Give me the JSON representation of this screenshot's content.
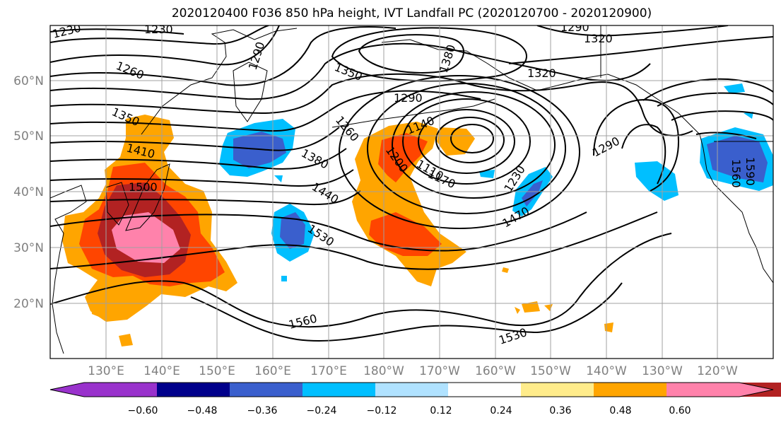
{
  "title": "2020120400 F036 850 hPa height, IVT Landfall PC (2020120700 - 2020120900)",
  "lat_labels": [
    "60°N",
    "50°N",
    "40°N",
    "30°N",
    "20°N"
  ],
  "lon_labels": [
    "130°E",
    "140°E",
    "150°E",
    "160°E",
    "170°E",
    "180°W",
    "170°W",
    "160°W",
    "150°W",
    "140°W",
    "130°W",
    "120°W"
  ],
  "colorbar": {
    "tick_labels": [
      "−0.60",
      "−0.48",
      "−0.36",
      "−0.24",
      "−0.12",
      "0.12",
      "0.24",
      "0.36",
      "0.48",
      "0.60"
    ],
    "colors": [
      "#9932cc",
      "#00008b",
      "#3a5fcd",
      "#00bfff",
      "#b0e2ff",
      "#ffffff",
      "#ffec8b",
      "#ffa500",
      "#ff4500",
      "#b22222",
      "#ff82ab"
    ]
  },
  "contour_labels": [
    {
      "id": "c1230a",
      "text": "1230"
    },
    {
      "id": "c1230b",
      "text": "1230"
    },
    {
      "id": "c1290a",
      "text": "1290"
    },
    {
      "id": "c1290b",
      "text": "1290"
    },
    {
      "id": "c1320a",
      "text": "1320"
    },
    {
      "id": "c1320b",
      "text": "1320"
    },
    {
      "id": "c1260a",
      "text": "1260"
    },
    {
      "id": "c1350a",
      "text": "1350"
    },
    {
      "id": "c1380a",
      "text": "1380"
    },
    {
      "id": "c1290c",
      "text": "1290"
    },
    {
      "id": "c1350b",
      "text": "1350"
    },
    {
      "id": "c1260b",
      "text": "1260"
    },
    {
      "id": "c1410a",
      "text": "1410"
    },
    {
      "id": "c1140",
      "text": "1140"
    },
    {
      "id": "c1200",
      "text": "1200"
    },
    {
      "id": "c1110",
      "text": "1110"
    },
    {
      "id": "c1170",
      "text": "1170"
    },
    {
      "id": "c1290d",
      "text": "1290"
    },
    {
      "id": "c1380b",
      "text": "1380"
    },
    {
      "id": "c1500",
      "text": "1500"
    },
    {
      "id": "c1440",
      "text": "1440"
    },
    {
      "id": "c1230c",
      "text": "1230"
    },
    {
      "id": "c1560a",
      "text": "1560"
    },
    {
      "id": "c1590",
      "text": "1590"
    },
    {
      "id": "c1530a",
      "text": "1530"
    },
    {
      "id": "c1470",
      "text": "1470"
    },
    {
      "id": "c1560b",
      "text": "1560"
    },
    {
      "id": "c1530b",
      "text": "1530"
    }
  ]
}
